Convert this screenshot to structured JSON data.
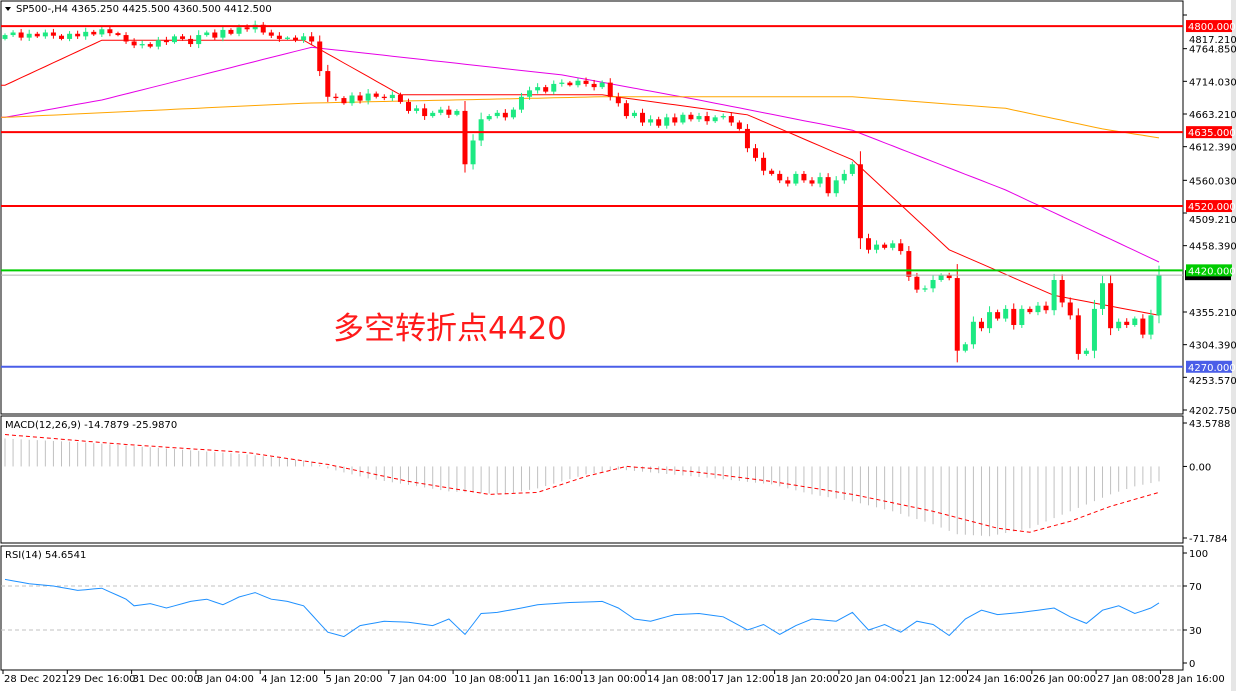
{
  "chart_data": [
    {
      "type": "candlestick",
      "title": "SP500-,H4  4365.250 4425.500 4360.500 4412.500",
      "symbol": "SP500-,H4",
      "ohlc_last": {
        "open": 4365.25,
        "high": 4425.5,
        "low": 4360.5,
        "close": 4412.5
      },
      "ylim": [
        4202.75,
        4817.21
      ],
      "y_ticks": [
        "4817.210",
        "4764.850",
        "4714.030",
        "4663.210",
        "4612.390",
        "4560.030",
        "4509.210",
        "4458.390",
        "4355.210",
        "4304.390",
        "4253.570",
        "4202.750"
      ],
      "closes": [
        4786,
        4790,
        4782,
        4788,
        4784,
        4790,
        4785,
        4780,
        4788,
        4784,
        4791,
        4787,
        4795,
        4789,
        4786,
        4776,
        4770,
        4772,
        4768,
        4778,
        4775,
        4784,
        4780,
        4772,
        4786,
        4790,
        4782,
        4794,
        4788,
        4798,
        4795,
        4802,
        4790,
        4785,
        4780,
        4782,
        4778,
        4784,
        4776,
        4730,
        4690,
        4688,
        4680,
        4692,
        4684,
        4695,
        4690,
        4688,
        4693,
        4682,
        4668,
        4672,
        4660,
        4665,
        4670,
        4662,
        4668,
        4585,
        4622,
        4655,
        4660,
        4665,
        4658,
        4670,
        4690,
        4700,
        4705,
        4698,
        4710,
        4712,
        4708,
        4715,
        4710,
        4705,
        4712,
        4690,
        4680,
        4660,
        4665,
        4650,
        4655,
        4645,
        4658,
        4650,
        4662,
        4655,
        4660,
        4652,
        4658,
        4660,
        4650,
        4640,
        4610,
        4595,
        4575,
        4570,
        4560,
        4555,
        4570,
        4560,
        4555,
        4565,
        4540,
        4560,
        4570,
        4585,
        4470,
        4452,
        4460,
        4455,
        4462,
        4450,
        4410,
        4390,
        4392,
        4405,
        4412,
        4408,
        4295,
        4305,
        4340,
        4330,
        4355,
        4345,
        4360,
        4335,
        4360,
        4355,
        4365,
        4358,
        4405,
        4370,
        4350,
        4290,
        4295,
        4360,
        4400,
        4330,
        4340,
        4335,
        4345,
        4320,
        4350,
        4412.5
      ],
      "first_open": 4780,
      "moving_averages": [
        {
          "color": "#ff0000",
          "points": [
            [
              0,
              4708
            ],
            [
              12,
              4778
            ],
            [
              37,
              4778
            ],
            [
              49,
              4693
            ],
            [
              74,
              4693
            ],
            [
              92,
              4662
            ],
            [
              105,
              4592
            ],
            [
              117,
              4452
            ],
            [
              130,
              4381
            ],
            [
              143,
              4350
            ]
          ]
        },
        {
          "color": "#e600e6",
          "points": [
            [
              0,
              4658
            ],
            [
              12,
              4685
            ],
            [
              38,
              4767
            ],
            [
              69,
              4724
            ],
            [
              86,
              4685
            ],
            [
              105,
              4638
            ],
            [
              124,
              4545
            ],
            [
              143,
              4433
            ]
          ]
        },
        {
          "color": "#ffa500",
          "points": [
            [
              0,
              4658
            ],
            [
              37,
              4680
            ],
            [
              74,
              4690
            ],
            [
              105,
              4690
            ],
            [
              124,
              4672
            ],
            [
              136,
              4640
            ],
            [
              143,
              4626
            ]
          ]
        }
      ],
      "levels": [
        {
          "value": 4800,
          "label": "4800.000",
          "color": "#ff0000"
        },
        {
          "value": 4635,
          "label": "4635.000",
          "color": "#ff0000"
        },
        {
          "value": 4520,
          "label": "4520.000",
          "color": "#ff0000"
        },
        {
          "value": 4420,
          "label": "4420.000",
          "color": "#00cc00"
        },
        {
          "value": 4270,
          "label": "4270.000",
          "color": "#4a5ee8"
        }
      ],
      "current_price": 4412.5,
      "annotation": "多空转折点4420",
      "colors": {
        "bull": "#1de982",
        "bear": "#ff0000"
      }
    },
    {
      "type": "bar+line",
      "title": "MACD(12,26,9) -14.7879 -25.9870",
      "ylim": [
        -71.784,
        43.5788
      ],
      "y_ticks": [
        "43.5788",
        "0.00",
        "-71.784"
      ],
      "histogram_points": [
        [
          0,
          28
        ],
        [
          10,
          24
        ],
        [
          20,
          18
        ],
        [
          30,
          12
        ],
        [
          38,
          5
        ],
        [
          40,
          -2
        ],
        [
          45,
          -12
        ],
        [
          55,
          -25
        ],
        [
          62,
          -28
        ],
        [
          66,
          -22
        ],
        [
          72,
          -8
        ],
        [
          76,
          -3
        ],
        [
          80,
          -6
        ],
        [
          88,
          -12
        ],
        [
          95,
          -18
        ],
        [
          100,
          -28
        ],
        [
          105,
          -35
        ],
        [
          110,
          -45
        ],
        [
          115,
          -58
        ],
        [
          118,
          -68
        ],
        [
          122,
          -70
        ],
        [
          127,
          -62
        ],
        [
          132,
          -45
        ],
        [
          137,
          -28
        ],
        [
          140,
          -20
        ],
        [
          143,
          -15
        ]
      ],
      "signal_points": [
        [
          0,
          32
        ],
        [
          15,
          22
        ],
        [
          30,
          14
        ],
        [
          40,
          2
        ],
        [
          50,
          -15
        ],
        [
          60,
          -28
        ],
        [
          66,
          -26
        ],
        [
          72,
          -10
        ],
        [
          77,
          0
        ],
        [
          85,
          -5
        ],
        [
          95,
          -15
        ],
        [
          105,
          -28
        ],
        [
          115,
          -45
        ],
        [
          123,
          -62
        ],
        [
          127,
          -66
        ],
        [
          132,
          -55
        ],
        [
          137,
          -40
        ],
        [
          143,
          -26
        ]
      ]
    },
    {
      "type": "line",
      "title": "RSI(14) 54.6541",
      "ylim": [
        0,
        100
      ],
      "y_ticks": [
        "100",
        "70",
        "30",
        "0"
      ],
      "levels": [
        70,
        30
      ],
      "points": [
        [
          0,
          76
        ],
        [
          3,
          72
        ],
        [
          6,
          70
        ],
        [
          9,
          66
        ],
        [
          12,
          68
        ],
        [
          15,
          58
        ],
        [
          16,
          52
        ],
        [
          18,
          54
        ],
        [
          20,
          50
        ],
        [
          23,
          56
        ],
        [
          25,
          58
        ],
        [
          27,
          53
        ],
        [
          29,
          60
        ],
        [
          31,
          64
        ],
        [
          33,
          58
        ],
        [
          35,
          56
        ],
        [
          37,
          52
        ],
        [
          39,
          36
        ],
        [
          40,
          28
        ],
        [
          42,
          24
        ],
        [
          44,
          34
        ],
        [
          47,
          38
        ],
        [
          50,
          37
        ],
        [
          53,
          34
        ],
        [
          55,
          40
        ],
        [
          57,
          26
        ],
        [
          59,
          45
        ],
        [
          61,
          46
        ],
        [
          64,
          50
        ],
        [
          66,
          53
        ],
        [
          70,
          55
        ],
        [
          74,
          56
        ],
        [
          76,
          50
        ],
        [
          78,
          40
        ],
        [
          80,
          38
        ],
        [
          83,
          44
        ],
        [
          86,
          45
        ],
        [
          89,
          42
        ],
        [
          92,
          30
        ],
        [
          94,
          35
        ],
        [
          96,
          26
        ],
        [
          98,
          34
        ],
        [
          100,
          40
        ],
        [
          103,
          38
        ],
        [
          105,
          46
        ],
        [
          107,
          30
        ],
        [
          109,
          35
        ],
        [
          111,
          28
        ],
        [
          113,
          38
        ],
        [
          115,
          35
        ],
        [
          117,
          25
        ],
        [
          119,
          40
        ],
        [
          121,
          48
        ],
        [
          123,
          44
        ],
        [
          126,
          46
        ],
        [
          130,
          50
        ],
        [
          132,
          42
        ],
        [
          134,
          36
        ],
        [
          136,
          48
        ],
        [
          138,
          52
        ],
        [
          140,
          45
        ],
        [
          142,
          50
        ],
        [
          143,
          54.6541
        ]
      ]
    }
  ],
  "x_axis": {
    "labels": [
      "28 Dec 2021",
      "29 Dec 16:00",
      "31 Dec 00:00",
      "3 Jan 04:00",
      "4 Jan 12:00",
      "5 Jan 20:00",
      "7 Jan 04:00",
      "10 Jan 08:00",
      "11 Jan 16:00",
      "13 Jan 00:00",
      "14 Jan 08:00",
      "17 Jan 12:00",
      "18 Jan 20:00",
      "20 Jan 04:00",
      "21 Jan 12:00",
      "24 Jan 16:00",
      "26 Jan 00:00",
      "27 Jan 08:00",
      "28 Jan 16:00"
    ]
  }
}
